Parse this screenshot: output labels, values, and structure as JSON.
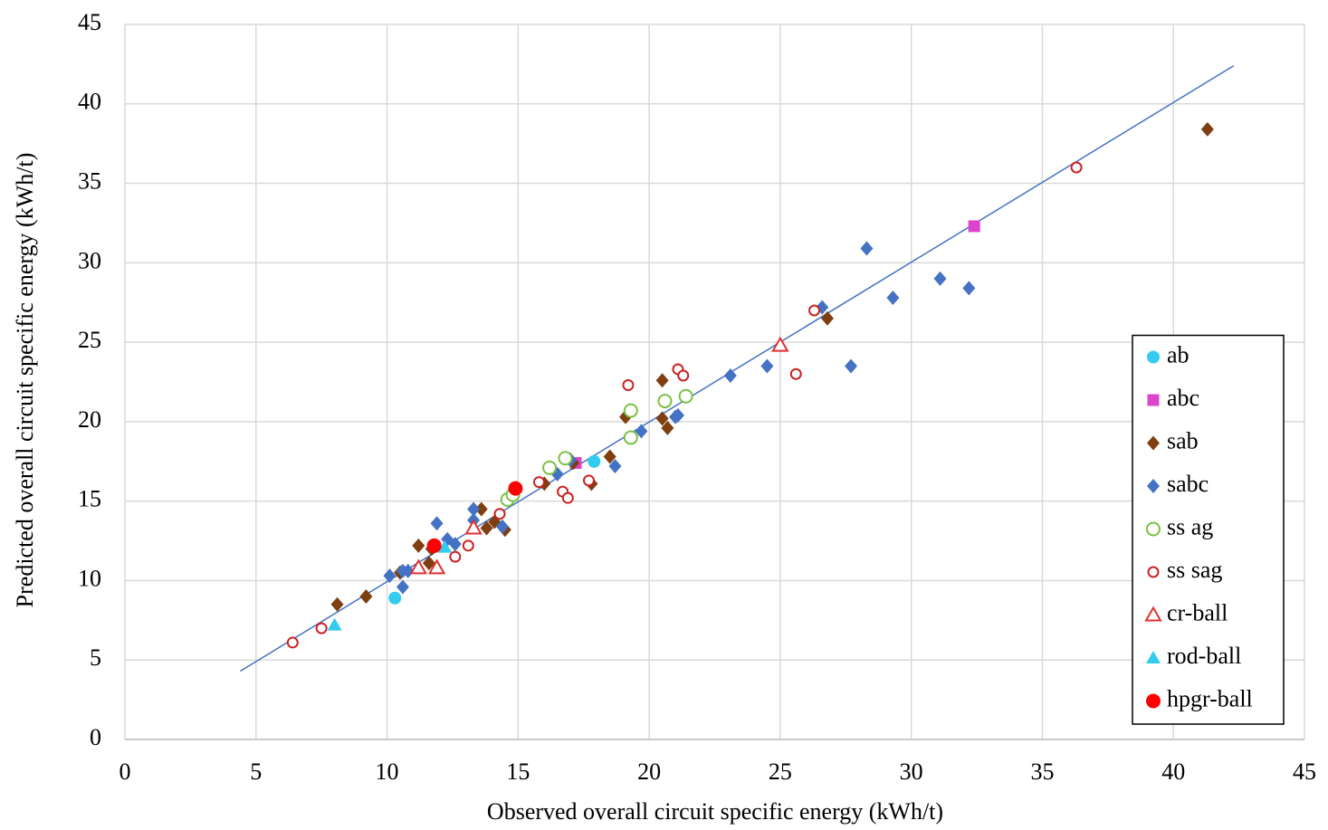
{
  "chart_data": {
    "type": "scatter",
    "x_label": "Observed overall circuit specific energy (kWh/t)",
    "y_label": "Predicted overall circuit specific energy (kWh/t)",
    "xlim": [
      0,
      45
    ],
    "ylim": [
      0,
      45
    ],
    "xticks": [
      0,
      5,
      10,
      15,
      20,
      25,
      30,
      35,
      40,
      45
    ],
    "yticks": [
      0,
      5,
      10,
      15,
      20,
      25,
      30,
      35,
      40,
      45
    ],
    "grid": true,
    "legend": "lower right",
    "fit_line": {
      "color": "#4472c4",
      "x": [
        4.4,
        42.3
      ],
      "y": [
        4.3,
        42.4
      ]
    },
    "series": [
      {
        "name": "ab",
        "color": "#33ccee",
        "marker": "circle",
        "x": [
          10.3,
          17.9
        ],
        "y": [
          8.9,
          17.5
        ]
      },
      {
        "name": "abc",
        "color": "#dd44cc",
        "marker": "square",
        "x": [
          32.4,
          17.2
        ],
        "y": [
          32.3,
          17.4
        ]
      },
      {
        "name": "sab",
        "color": "#7f3f10",
        "marker": "diamond",
        "x": [
          41.3,
          26.8,
          20.5,
          19.1,
          20.5,
          20.7,
          18.5,
          17.8,
          17.1,
          16.0,
          13.6,
          14.5,
          13.8,
          14.1,
          11.2,
          11.6,
          10.5,
          9.2,
          8.1,
          11.7
        ],
        "y": [
          38.4,
          26.5,
          22.6,
          20.3,
          20.2,
          19.6,
          17.8,
          16.1,
          17.4,
          16.1,
          14.5,
          13.2,
          13.3,
          13.7,
          12.2,
          11.1,
          10.5,
          9.0,
          8.5,
          12.0
        ]
      },
      {
        "name": "sabc",
        "color": "#4472c4",
        "marker": "diamond",
        "x": [
          28.3,
          31.1,
          32.2,
          29.3,
          26.6,
          27.7,
          24.5,
          23.1,
          21.1,
          21.0,
          19.7,
          18.7,
          16.5,
          17.0,
          13.3,
          13.3,
          14.4,
          11.9,
          12.3,
          12.6,
          10.1,
          10.6,
          10.8,
          10.6
        ],
        "y": [
          30.9,
          29.0,
          28.4,
          27.8,
          27.2,
          23.5,
          23.5,
          22.9,
          20.4,
          20.3,
          19.4,
          17.2,
          16.7,
          17.6,
          14.5,
          13.8,
          13.4,
          13.6,
          12.6,
          12.3,
          10.3,
          10.6,
          10.6,
          9.6
        ]
      },
      {
        "name": "ss ag",
        "color": "#7ac143",
        "marker": "circle-open",
        "x": [
          21.4,
          20.6,
          19.3,
          19.3,
          16.8,
          16.2,
          14.6,
          14.8
        ],
        "y": [
          21.6,
          21.3,
          20.7,
          19.0,
          17.7,
          17.1,
          15.1,
          15.4
        ]
      },
      {
        "name": "ss sag",
        "color": "#cc2222",
        "marker": "circle-small-open",
        "x": [
          36.3,
          26.3,
          25.6,
          21.1,
          21.3,
          19.2,
          17.7,
          16.7,
          16.9,
          15.8,
          14.3,
          13.1,
          12.6,
          7.5,
          6.4
        ],
        "y": [
          36.0,
          27.0,
          23.0,
          23.3,
          22.9,
          22.3,
          16.3,
          15.6,
          15.2,
          16.2,
          14.2,
          12.2,
          11.5,
          7.0,
          6.1
        ]
      },
      {
        "name": "cr-ball",
        "color": "#e03030",
        "marker": "triangle-open",
        "x": [
          25.0,
          13.3,
          11.2,
          11.9
        ],
        "y": [
          24.8,
          13.3,
          10.8,
          10.8
        ]
      },
      {
        "name": "rod-ball",
        "color": "#33ccee",
        "marker": "triangle",
        "x": [
          8.0,
          12.2
        ],
        "y": [
          7.2,
          12.1
        ]
      },
      {
        "name": "hpgr-ball",
        "color": "#ff0000",
        "marker": "circle-big",
        "x": [
          14.9,
          11.8
        ],
        "y": [
          15.8,
          12.2
        ]
      }
    ]
  }
}
